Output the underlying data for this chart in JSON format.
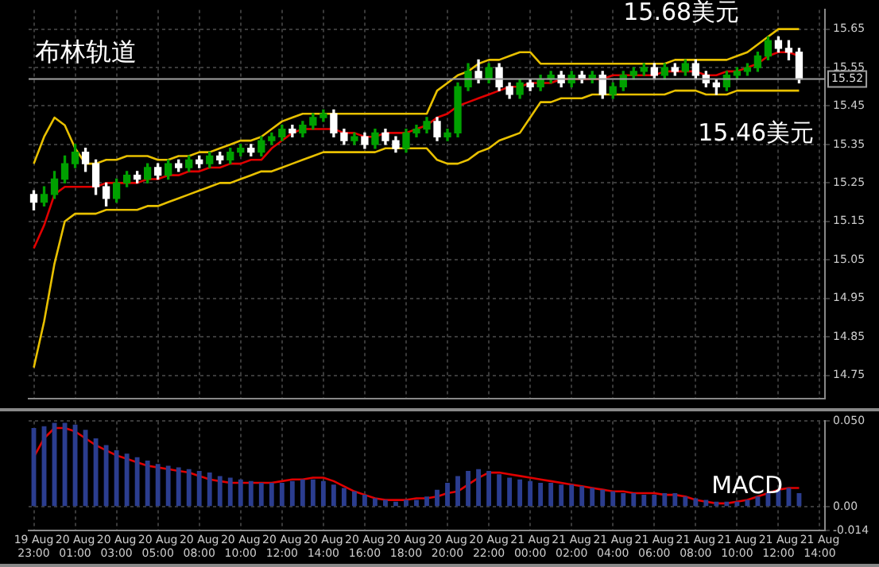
{
  "chart_data": [
    {
      "type": "candlestick",
      "annotations": [
        "布林轨道",
        "15.68美元",
        "15.46美元"
      ],
      "categories": [
        null,
        null,
        null,
        null,
        null,
        null,
        null,
        null,
        null,
        null,
        null,
        null,
        null,
        null,
        null,
        null,
        null,
        null,
        null,
        null,
        null,
        null,
        null,
        null,
        null,
        null,
        null,
        null,
        null,
        null,
        null,
        null,
        null,
        null,
        null,
        null,
        null,
        null,
        null,
        null,
        null,
        null,
        null,
        null,
        null,
        null,
        null,
        null,
        null,
        null,
        null,
        null,
        null,
        null,
        null,
        null,
        null,
        null,
        null,
        null,
        null,
        null,
        null,
        null,
        null,
        null,
        null,
        null,
        null,
        null,
        null,
        null,
        null,
        null,
        null,
        null,
        null
      ],
      "ohlc": [
        [
          15.22,
          15.23,
          15.18,
          15.2
        ],
        [
          15.2,
          15.24,
          15.19,
          15.22
        ],
        [
          15.22,
          15.28,
          15.21,
          15.26
        ],
        [
          15.26,
          15.32,
          15.25,
          15.3
        ],
        [
          15.3,
          15.35,
          15.29,
          15.33
        ],
        [
          15.33,
          15.34,
          15.28,
          15.3
        ],
        [
          15.3,
          15.31,
          15.22,
          15.24
        ],
        [
          15.24,
          15.25,
          15.19,
          15.21
        ],
        [
          15.21,
          15.26,
          15.2,
          15.25
        ],
        [
          15.25,
          15.28,
          15.24,
          15.27
        ],
        [
          15.27,
          15.28,
          15.25,
          15.26
        ],
        [
          15.26,
          15.3,
          15.25,
          15.29
        ],
        [
          15.29,
          15.3,
          15.26,
          15.27
        ],
        [
          15.27,
          15.31,
          15.26,
          15.3
        ],
        [
          15.3,
          15.31,
          15.28,
          15.29
        ],
        [
          15.29,
          15.32,
          15.28,
          15.31
        ],
        [
          15.31,
          15.32,
          15.29,
          15.3
        ],
        [
          15.3,
          15.33,
          15.29,
          15.32
        ],
        [
          15.32,
          15.33,
          15.3,
          15.31
        ],
        [
          15.31,
          15.34,
          15.3,
          15.33
        ],
        [
          15.33,
          15.35,
          15.32,
          15.34
        ],
        [
          15.34,
          15.35,
          15.32,
          15.33
        ],
        [
          15.33,
          15.37,
          15.32,
          15.36
        ],
        [
          15.36,
          15.38,
          15.35,
          15.37
        ],
        [
          15.37,
          15.4,
          15.36,
          15.39
        ],
        [
          15.39,
          15.4,
          15.37,
          15.38
        ],
        [
          15.38,
          15.41,
          15.37,
          15.4
        ],
        [
          15.4,
          15.43,
          15.39,
          15.42
        ],
        [
          15.42,
          15.44,
          15.41,
          15.43
        ],
        [
          15.43,
          15.44,
          15.37,
          15.38
        ],
        [
          15.38,
          15.39,
          15.35,
          15.36
        ],
        [
          15.36,
          15.38,
          15.35,
          15.37
        ],
        [
          15.37,
          15.38,
          15.34,
          15.35
        ],
        [
          15.35,
          15.39,
          15.34,
          15.38
        ],
        [
          15.38,
          15.39,
          15.35,
          15.36
        ],
        [
          15.36,
          15.37,
          15.33,
          15.34
        ],
        [
          15.34,
          15.39,
          15.33,
          15.38
        ],
        [
          15.38,
          15.4,
          15.37,
          15.39
        ],
        [
          15.39,
          15.42,
          15.38,
          15.41
        ],
        [
          15.41,
          15.42,
          15.36,
          15.37
        ],
        [
          15.37,
          15.39,
          15.36,
          15.38
        ],
        [
          15.38,
          15.51,
          15.37,
          15.5
        ],
        [
          15.5,
          15.56,
          15.49,
          15.54
        ],
        [
          15.54,
          15.57,
          15.51,
          15.52
        ],
        [
          15.52,
          15.56,
          15.51,
          15.55
        ],
        [
          15.55,
          15.56,
          15.49,
          15.5
        ],
        [
          15.5,
          15.51,
          15.47,
          15.48
        ],
        [
          15.48,
          15.52,
          15.47,
          15.51
        ],
        [
          15.51,
          15.52,
          15.49,
          15.5
        ],
        [
          15.5,
          15.53,
          15.49,
          15.52
        ],
        [
          15.52,
          15.54,
          15.51,
          15.53
        ],
        [
          15.53,
          15.54,
          15.5,
          15.51
        ],
        [
          15.51,
          15.54,
          15.5,
          15.53
        ],
        [
          15.53,
          15.54,
          15.51,
          15.52
        ],
        [
          15.52,
          15.54,
          15.51,
          15.53
        ],
        [
          15.53,
          15.54,
          15.47,
          15.48
        ],
        [
          15.48,
          15.51,
          15.47,
          15.5
        ],
        [
          15.5,
          15.54,
          15.49,
          15.53
        ],
        [
          15.53,
          15.55,
          15.52,
          15.54
        ],
        [
          15.54,
          15.56,
          15.53,
          15.55
        ],
        [
          15.55,
          15.56,
          15.52,
          15.53
        ],
        [
          15.53,
          15.56,
          15.52,
          15.55
        ],
        [
          15.55,
          15.56,
          15.53,
          15.54
        ],
        [
          15.54,
          15.57,
          15.53,
          15.56
        ],
        [
          15.56,
          15.57,
          15.52,
          15.53
        ],
        [
          15.53,
          15.54,
          15.5,
          15.51
        ],
        [
          15.51,
          15.52,
          15.48,
          15.5
        ],
        [
          15.5,
          15.54,
          15.49,
          15.53
        ],
        [
          15.53,
          15.55,
          15.52,
          15.54
        ],
        [
          15.54,
          15.56,
          15.53,
          15.55
        ],
        [
          15.55,
          15.59,
          15.54,
          15.58
        ],
        [
          15.58,
          15.63,
          15.57,
          15.62
        ],
        [
          15.62,
          15.63,
          15.59,
          15.6
        ],
        [
          15.6,
          15.62,
          15.57,
          15.59
        ],
        [
          15.59,
          15.6,
          15.51,
          15.52
        ],
        null,
        null
      ],
      "colors": [
        "#ffffff",
        "#00a000",
        "#00a000",
        "#00a000",
        "#00a000",
        "#ffffff",
        "#ffffff",
        "#ffffff",
        "#00a000",
        "#00a000",
        "#ffffff",
        "#00a000",
        "#ffffff",
        "#00a000",
        "#ffffff",
        "#00a000",
        "#ffffff",
        "#00a000",
        "#ffffff",
        "#00a000",
        "#00a000",
        "#ffffff",
        "#00a000",
        "#00a000",
        "#00a000",
        "#ffffff",
        "#00a000",
        "#00a000",
        "#00a000",
        "#ffffff",
        "#ffffff",
        "#00a000",
        "#ffffff",
        "#00a000",
        "#ffffff",
        "#ffffff",
        "#00a000",
        "#00a000",
        "#00a000",
        "#ffffff",
        "#00a000",
        "#00a000",
        "#00a000",
        "#ffffff",
        "#00a000",
        "#ffffff",
        "#ffffff",
        "#00a000",
        "#ffffff",
        "#00a000",
        "#00a000",
        "#ffffff",
        "#00a000",
        "#ffffff",
        "#00a000",
        "#ffffff",
        "#00a000",
        "#00a000",
        "#00a000",
        "#00a000",
        "#ffffff",
        "#00a000",
        "#ffffff",
        "#00a000",
        "#ffffff",
        "#ffffff",
        "#ffffff",
        "#00a000",
        "#00a000",
        "#00a000",
        "#00a000",
        "#00a000",
        "#ffffff",
        "#ffffff",
        "#ffffff",
        null,
        null
      ],
      "series": [
        {
          "type": "line",
          "color": "#e8c000",
          "values": [
            15.3,
            15.37,
            15.42,
            15.4,
            15.34,
            15.3,
            15.3,
            15.31,
            15.31,
            15.32,
            15.32,
            15.32,
            15.31,
            15.31,
            15.32,
            15.32,
            15.33,
            15.33,
            15.34,
            15.35,
            15.36,
            15.36,
            15.37,
            15.39,
            15.41,
            15.42,
            15.43,
            15.43,
            15.43,
            15.43,
            15.43,
            15.43,
            15.43,
            15.43,
            15.43,
            15.43,
            15.43,
            15.43,
            15.43,
            15.49,
            15.51,
            15.53,
            15.54,
            15.56,
            15.57,
            15.57,
            15.58,
            15.59,
            15.59,
            15.56,
            15.56,
            15.56,
            15.56,
            15.56,
            15.56,
            15.56,
            15.56,
            15.56,
            15.56,
            15.56,
            15.56,
            15.56,
            15.57,
            15.57,
            15.57,
            15.57,
            15.57,
            15.57,
            15.58,
            15.59,
            15.61,
            15.63,
            15.65,
            15.65,
            15.65,
            null,
            null
          ]
        },
        {
          "type": "line",
          "color": "#e00000",
          "values": [
            15.08,
            15.14,
            15.22,
            15.24,
            15.24,
            15.24,
            15.24,
            15.25,
            15.25,
            15.25,
            15.25,
            15.26,
            15.26,
            15.27,
            15.27,
            15.28,
            15.28,
            15.29,
            15.29,
            15.3,
            15.3,
            15.31,
            15.31,
            15.34,
            15.36,
            15.38,
            15.39,
            15.39,
            15.39,
            15.39,
            15.38,
            15.38,
            15.37,
            15.37,
            15.38,
            15.38,
            15.38,
            15.39,
            15.4,
            15.42,
            15.43,
            15.45,
            15.46,
            15.47,
            15.48,
            15.49,
            15.5,
            15.5,
            15.51,
            15.51,
            15.51,
            15.52,
            15.52,
            15.52,
            15.52,
            15.52,
            15.53,
            15.53,
            15.53,
            15.53,
            15.53,
            15.54,
            15.54,
            15.54,
            15.54,
            15.53,
            15.53,
            15.54,
            15.54,
            15.55,
            15.56,
            15.58,
            15.59,
            15.59,
            15.58,
            null,
            null
          ]
        },
        {
          "type": "line",
          "color": "#e8c000",
          "values": [
            14.77,
            14.89,
            15.04,
            15.15,
            15.17,
            15.17,
            15.17,
            15.18,
            15.18,
            15.18,
            15.18,
            15.19,
            15.19,
            15.2,
            15.21,
            15.22,
            15.23,
            15.24,
            15.25,
            15.25,
            15.26,
            15.27,
            15.28,
            15.28,
            15.29,
            15.3,
            15.31,
            15.32,
            15.33,
            15.33,
            15.33,
            15.33,
            15.33,
            15.33,
            15.34,
            15.34,
            15.34,
            15.34,
            15.34,
            15.31,
            15.3,
            15.3,
            15.31,
            15.33,
            15.34,
            15.36,
            15.37,
            15.38,
            15.42,
            15.46,
            15.46,
            15.47,
            15.47,
            15.47,
            15.48,
            15.48,
            15.48,
            15.48,
            15.48,
            15.48,
            15.48,
            15.48,
            15.49,
            15.49,
            15.49,
            15.48,
            15.48,
            15.48,
            15.49,
            15.49,
            15.49,
            15.49,
            15.49,
            15.49,
            15.49,
            null,
            null
          ]
        }
      ],
      "ylim": [
        14.69,
        15.7
      ],
      "yticks": [
        14.75,
        14.85,
        14.95,
        15.05,
        15.15,
        15.25,
        15.35,
        15.45,
        15.55,
        15.65
      ],
      "ref_lines": [
        {
          "axis": "y",
          "value": 15.52,
          "label": "15.52",
          "color": "#a0a0a0"
        }
      ],
      "grid": true,
      "tick_labels": "y"
    },
    {
      "type": "bar",
      "annotations": [
        "MACD"
      ],
      "categories": [
        "19 Aug 23:00",
        null,
        null,
        null,
        "20 Aug 01:00",
        null,
        null,
        null,
        "20 Aug 03:00",
        null,
        null,
        null,
        "20 Aug 05:00",
        null,
        null,
        null,
        "20 Aug 08:00",
        null,
        null,
        null,
        "20 Aug 10:00",
        null,
        null,
        null,
        "20 Aug 12:00",
        null,
        null,
        null,
        "20 Aug 14:00",
        null,
        null,
        null,
        "20 Aug 16:00",
        null,
        null,
        null,
        "20 Aug 18:00",
        null,
        null,
        null,
        "20 Aug 20:00",
        null,
        null,
        null,
        "20 Aug 22:00",
        null,
        null,
        null,
        "21 Aug 00:00",
        null,
        null,
        null,
        "21 Aug 02:00",
        null,
        null,
        null,
        "21 Aug 04:00",
        null,
        null,
        null,
        "21 Aug 06:00",
        null,
        null,
        null,
        "21 Aug 08:00",
        null,
        null,
        null,
        "21 Aug 10:00",
        null,
        null,
        null,
        "21 Aug 12:00",
        null,
        null,
        null,
        "21 Aug 14:00"
      ],
      "series": [
        {
          "type": "bar",
          "color": "#2b3d8f",
          "values": [
            0.046,
            0.047,
            0.049,
            0.049,
            0.048,
            0.045,
            0.04,
            0.036,
            0.033,
            0.031,
            0.029,
            0.027,
            0.025,
            0.024,
            0.023,
            0.022,
            0.021,
            0.02,
            0.018,
            0.017,
            0.016,
            0.015,
            0.014,
            0.014,
            0.014,
            0.015,
            0.016,
            0.016,
            0.015,
            0.013,
            0.011,
            0.009,
            0.007,
            0.005,
            0.004,
            0.003,
            0.004,
            0.004,
            0.006,
            0.01,
            0.014,
            0.018,
            0.021,
            0.022,
            0.021,
            0.019,
            0.017,
            0.016,
            0.015,
            0.014,
            0.014,
            0.013,
            0.013,
            0.012,
            0.011,
            0.01,
            0.009,
            0.008,
            0.008,
            0.007,
            0.007,
            0.008,
            0.008,
            0.006,
            0.005,
            0.004,
            0.003,
            0.003,
            0.003,
            0.004,
            0.006,
            0.008,
            0.01,
            0.011,
            0.008,
            null,
            null
          ]
        },
        {
          "type": "line",
          "color": "#e00000",
          "values": [
            0.029,
            0.04,
            0.046,
            0.046,
            0.044,
            0.04,
            0.036,
            0.033,
            0.03,
            0.028,
            0.026,
            0.024,
            0.023,
            0.022,
            0.021,
            0.02,
            0.018,
            0.016,
            0.015,
            0.014,
            0.014,
            0.014,
            0.014,
            0.014,
            0.015,
            0.016,
            0.016,
            0.017,
            0.017,
            0.015,
            0.012,
            0.009,
            0.007,
            0.005,
            0.004,
            0.004,
            0.004,
            0.005,
            0.005,
            0.006,
            0.008,
            0.009,
            0.013,
            0.017,
            0.02,
            0.02,
            0.019,
            0.018,
            0.017,
            0.016,
            0.015,
            0.014,
            0.013,
            0.012,
            0.011,
            0.01,
            0.009,
            0.009,
            0.008,
            0.008,
            0.008,
            0.007,
            0.007,
            0.006,
            0.004,
            0.003,
            0.002,
            0.002,
            0.003,
            0.004,
            0.006,
            0.008,
            0.01,
            0.011,
            0.011,
            null,
            null
          ]
        }
      ],
      "ylim": [
        -0.014,
        0.05
      ],
      "yticks": [
        {
          "value": 0.05,
          "label": "0.050"
        },
        {
          "value": 0,
          "label": "0.00"
        },
        -0.014
      ],
      "grid": true
    }
  ]
}
